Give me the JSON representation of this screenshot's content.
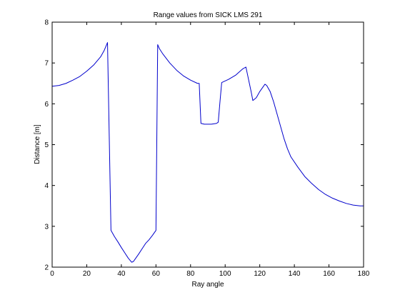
{
  "chart_data": {
    "type": "line",
    "title": "Range values from SICK LMS 291",
    "xlabel": "Ray angle",
    "ylabel": "Distance [m]",
    "xlim": [
      0,
      180
    ],
    "ylim": [
      2,
      8
    ],
    "xticks": [
      0,
      20,
      40,
      60,
      80,
      100,
      120,
      140,
      160,
      180
    ],
    "yticks": [
      2,
      3,
      4,
      5,
      6,
      7,
      8
    ],
    "grid": false,
    "legend": "none",
    "series": [
      {
        "color": "#0000cc",
        "x": [
          0,
          4,
          8,
          12,
          16,
          20,
          24,
          28,
          30,
          32,
          33,
          34,
          36,
          38,
          40,
          42,
          44,
          46,
          47,
          48,
          50,
          52,
          54,
          56,
          58,
          60,
          61,
          62,
          64,
          68,
          72,
          76,
          80,
          84,
          85,
          86,
          88,
          92,
          95,
          96,
          97,
          98,
          102,
          106,
          110,
          112,
          113,
          114,
          115,
          116,
          118,
          120,
          122,
          123,
          124,
          126,
          128,
          130,
          132,
          134,
          136,
          138,
          142,
          146,
          150,
          154,
          158,
          162,
          166,
          170,
          174,
          178,
          180
        ],
        "y": [
          6.43,
          6.45,
          6.5,
          6.58,
          6.67,
          6.8,
          6.95,
          7.15,
          7.3,
          7.5,
          5.2,
          2.9,
          2.75,
          2.62,
          2.48,
          2.35,
          2.22,
          2.12,
          2.14,
          2.2,
          2.32,
          2.45,
          2.58,
          2.67,
          2.78,
          2.9,
          7.45,
          7.35,
          7.22,
          7.0,
          6.82,
          6.68,
          6.58,
          6.5,
          6.5,
          5.52,
          5.5,
          5.5,
          5.52,
          5.55,
          6.05,
          6.52,
          6.6,
          6.7,
          6.85,
          6.9,
          6.7,
          6.5,
          6.3,
          6.08,
          6.15,
          6.3,
          6.42,
          6.48,
          6.45,
          6.3,
          6.05,
          5.75,
          5.45,
          5.15,
          4.9,
          4.7,
          4.45,
          4.22,
          4.05,
          3.9,
          3.78,
          3.69,
          3.62,
          3.56,
          3.52,
          3.5,
          3.5
        ]
      }
    ]
  }
}
